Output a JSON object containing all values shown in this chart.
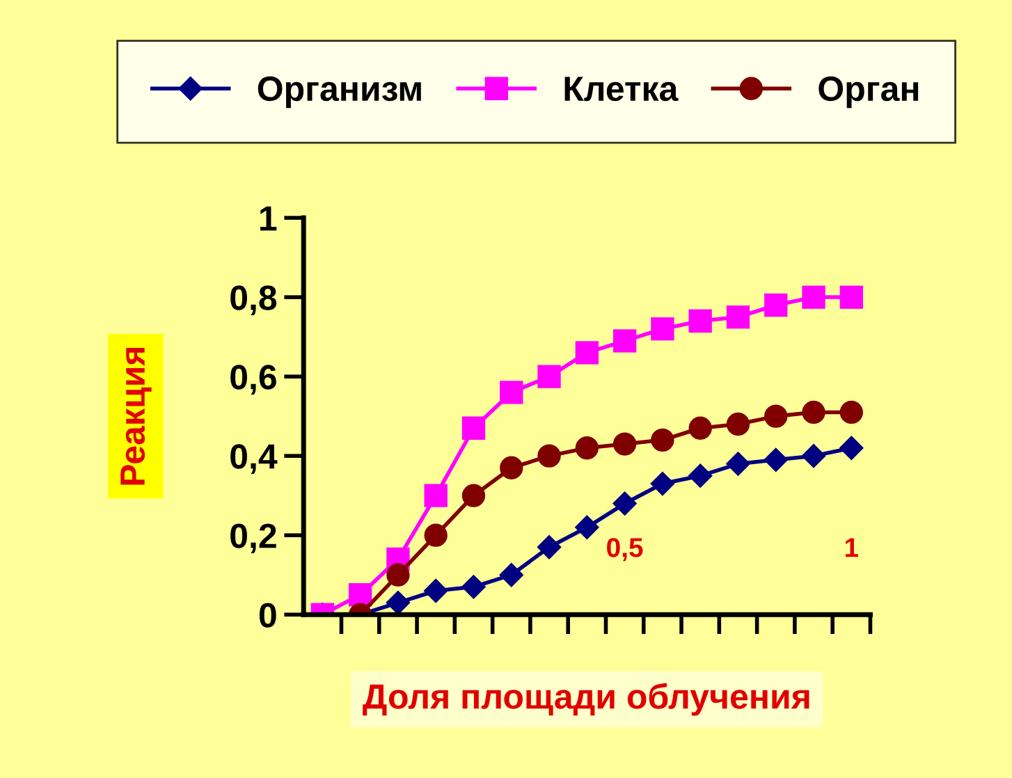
{
  "chart_data": {
    "type": "line",
    "xlabel": "Доля площади облучения",
    "ylabel": "Реакция",
    "categories": [
      null,
      null,
      null,
      null,
      null,
      null,
      null,
      null,
      "0,5",
      null,
      null,
      null,
      null,
      null,
      "1"
    ],
    "ylim": [
      0,
      1
    ],
    "yticks": [
      0,
      {
        "value": 0.2,
        "label": "0,2"
      },
      {
        "value": 0.4,
        "label": "0,4"
      },
      {
        "value": 0.6,
        "label": "0,6"
      },
      {
        "value": 0.8,
        "label": "0,8"
      },
      1
    ],
    "series": [
      {
        "name": "Организм",
        "color": "#000080",
        "marker": "diamond",
        "values": [
          0,
          0,
          0.03,
          0.06,
          0.07,
          0.1,
          0.17,
          0.22,
          0.28,
          0.33,
          0.35,
          0.38,
          0.39,
          0.4,
          0.42
        ]
      },
      {
        "name": "Клетка",
        "color": "#ff00ff",
        "marker": "square",
        "values": [
          0,
          0.05,
          0.14,
          0.3,
          0.47,
          0.56,
          0.6,
          0.66,
          0.69,
          0.72,
          0.74,
          0.75,
          0.78,
          0.8,
          0.8
        ]
      },
      {
        "name": "Орган",
        "color": "#800000",
        "marker": "circle",
        "values": [
          null,
          0,
          0.1,
          0.2,
          0.3,
          0.37,
          0.4,
          0.42,
          0.43,
          0.44,
          0.47,
          0.48,
          0.5,
          0.51,
          0.51
        ]
      }
    ],
    "legend": "top",
    "grid": false,
    "line_style": "solid"
  }
}
